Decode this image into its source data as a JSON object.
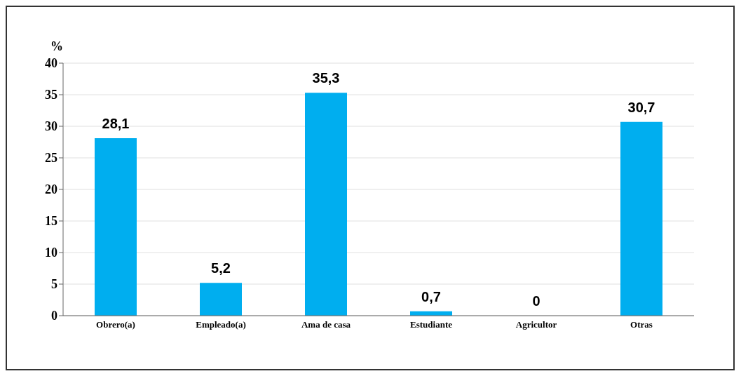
{
  "chart_data": {
    "type": "bar",
    "ylabel": "%",
    "categories": [
      "Obrero(a)",
      "Empleado(a)",
      "Ama de casa",
      "Estudiante",
      "Agricultor",
      "Otras"
    ],
    "values": [
      28.1,
      5.2,
      35.3,
      0.7,
      0,
      30.7
    ],
    "value_labels": [
      "28,1",
      "5,2",
      "35,3",
      "0,7",
      "0",
      "30,7"
    ],
    "color": "#00aeef",
    "ylim": [
      0,
      40
    ],
    "yticks": [
      0,
      5,
      10,
      15,
      20,
      25,
      30,
      35,
      40
    ],
    "grid": "y"
  }
}
